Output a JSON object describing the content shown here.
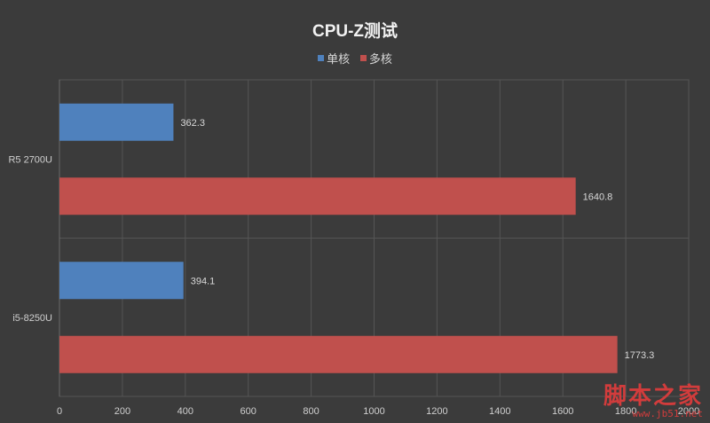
{
  "chart_data": {
    "type": "bar",
    "orientation": "horizontal",
    "title": "CPU-Z测试",
    "categories": [
      "R5 2700U",
      "i5-8250U"
    ],
    "series": [
      {
        "name": "单核",
        "color": "#4f81bd",
        "values": [
          362.3,
          394.1
        ]
      },
      {
        "name": "多核",
        "color": "#c0504d",
        "values": [
          1640.8,
          1773.3
        ]
      }
    ],
    "xlim": [
      0,
      2000
    ],
    "xticks": [
      0,
      200,
      400,
      600,
      800,
      1000,
      1200,
      1400,
      1600,
      1800,
      2000
    ],
    "grid": true,
    "legend_position": "top"
  },
  "watermark": {
    "main": "脚本之家",
    "sub": "www.jb51.net"
  }
}
